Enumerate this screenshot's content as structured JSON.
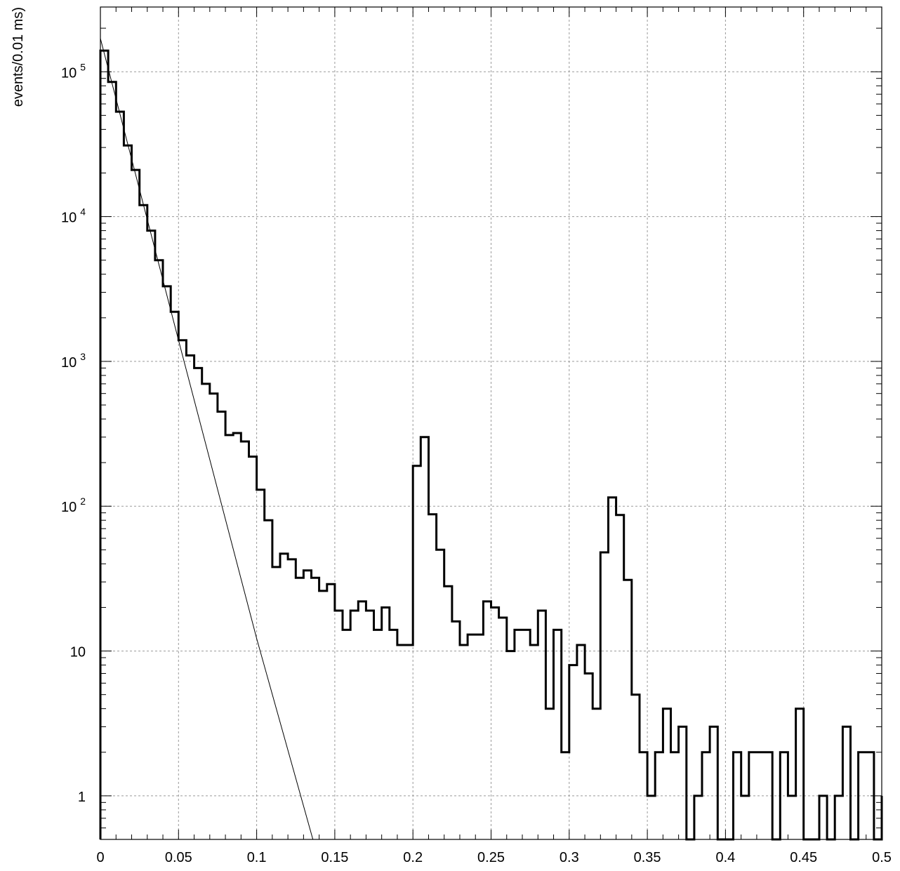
{
  "chart_data": {
    "type": "line",
    "title": "",
    "xlabel": "",
    "ylabel": "events/0.01 ms)",
    "xlim": [
      0,
      0.5
    ],
    "ylim": [
      0.5,
      280000
    ],
    "yscale": "log",
    "grid": true,
    "bin_width": 0.005,
    "x_ticks": [
      {
        "value": 0,
        "label": "0"
      },
      {
        "value": 0.05,
        "label": "0.05"
      },
      {
        "value": 0.1,
        "label": "0.1"
      },
      {
        "value": 0.15,
        "label": "0.15"
      },
      {
        "value": 0.2,
        "label": "0.2"
      },
      {
        "value": 0.25,
        "label": "0.25"
      },
      {
        "value": 0.3,
        "label": "0.3"
      },
      {
        "value": 0.35,
        "label": "0.35"
      },
      {
        "value": 0.4,
        "label": "0.4"
      },
      {
        "value": 0.45,
        "label": "0.45"
      },
      {
        "value": 0.5,
        "label": "0.5"
      }
    ],
    "y_ticks": [
      {
        "value": 1,
        "base": "1",
        "exp": ""
      },
      {
        "value": 10,
        "base": "10",
        "exp": ""
      },
      {
        "value": 100,
        "base": "10",
        "exp": "2"
      },
      {
        "value": 1000,
        "base": "10",
        "exp": "3"
      },
      {
        "value": 10000,
        "base": "10",
        "exp": "4"
      },
      {
        "value": 100000,
        "base": "10",
        "exp": "5"
      }
    ],
    "series": [
      {
        "type": "step-histogram",
        "x_start": 0,
        "values": [
          140000,
          85000,
          53000,
          31000,
          21000,
          12000,
          8000,
          5000,
          3300,
          2200,
          1400,
          1100,
          900,
          700,
          600,
          450,
          310,
          320,
          280,
          220,
          130,
          80,
          38,
          47,
          43,
          32,
          36,
          32,
          26,
          29,
          19,
          14,
          19,
          22,
          19,
          14,
          20,
          14,
          11,
          11,
          190,
          300,
          88,
          50,
          28,
          16,
          11,
          13,
          13,
          22,
          20,
          17,
          10,
          14,
          14,
          11,
          19,
          4,
          14,
          2,
          8,
          11,
          7,
          4,
          48,
          115,
          87,
          31,
          5,
          2,
          1,
          2,
          4,
          2,
          3,
          0,
          1,
          2,
          3,
          0,
          0,
          2,
          1,
          2,
          2,
          2,
          0,
          2,
          1,
          4,
          0,
          0,
          1,
          0,
          1,
          3,
          0,
          2,
          2,
          0,
          1
        ]
      },
      {
        "type": "fit-line",
        "points": [
          [
            0,
            170000
          ],
          [
            0.05,
            1400
          ],
          [
            0.1,
            12.2
          ],
          [
            0.136,
            0.5
          ]
        ]
      }
    ]
  }
}
